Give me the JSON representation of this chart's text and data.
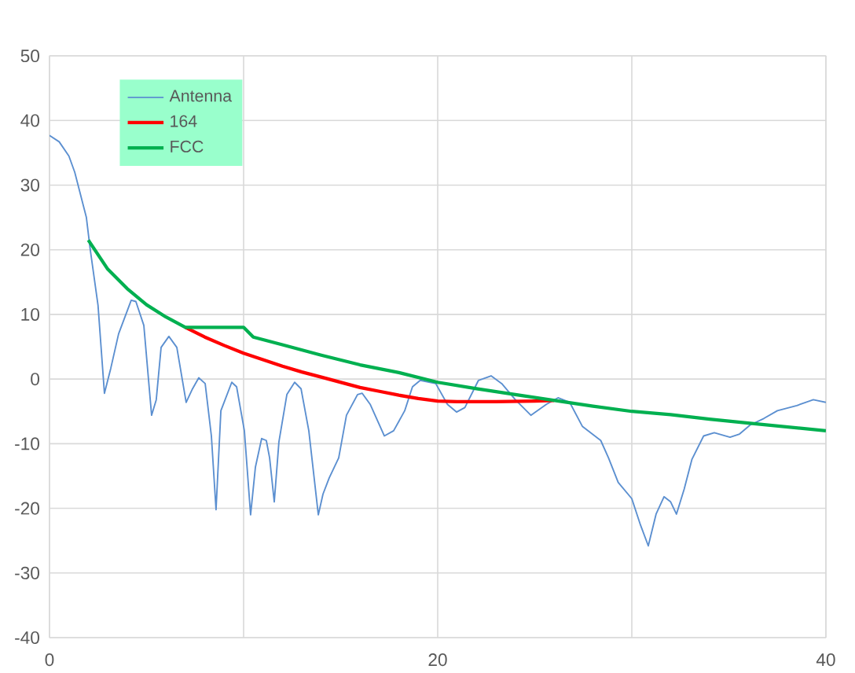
{
  "chart_data": {
    "type": "line",
    "xlim": [
      0,
      40
    ],
    "ylim": [
      -40,
      50
    ],
    "xticks": [
      0,
      {
        "value": 10,
        "label": null
      },
      20,
      {
        "value": 30,
        "label": null
      },
      40
    ],
    "yticks": [
      -40,
      -30,
      -20,
      -10,
      0,
      10,
      20,
      30,
      40,
      50
    ],
    "grid": true,
    "legend": "top left",
    "marker": "none",
    "line_style": "solid",
    "series": [
      {
        "name": "Antenna",
        "color": "#5b8fd0",
        "x": [
          0,
          0.5,
          1,
          1.3,
          1.6,
          1.9,
          2.1,
          2.5,
          2.83,
          3.16,
          3.56,
          4.21,
          4.45,
          4.86,
          5.26,
          5.5,
          5.75,
          6.15,
          6.56,
          7.04,
          7.37,
          7.69,
          8.02,
          8.34,
          8.58,
          8.83,
          9.39,
          9.64,
          10.04,
          10.36,
          10.61,
          10.93,
          11.17,
          11.34,
          11.58,
          11.82,
          12.23,
          12.63,
          12.96,
          13.36,
          13.85,
          14.09,
          14.41,
          14.9,
          15.3,
          15.87,
          16.11,
          16.52,
          17.25,
          17.73,
          18.3,
          18.7,
          19.1,
          19.9,
          20.5,
          20.97,
          21.4,
          22.1,
          22.75,
          23.3,
          24,
          24.8,
          25.6,
          26.2,
          26.8,
          27.45,
          28.4,
          28.8,
          29.3,
          30,
          30.45,
          30.85,
          31.25,
          31.66,
          32,
          32.3,
          32.7,
          33.1,
          33.7,
          34.25,
          35.06,
          35.55,
          36.1,
          36.8,
          37.5,
          38.5,
          39.35,
          40
        ],
        "values": [
          37.7,
          36.7,
          34.5,
          32,
          28.5,
          25,
          20,
          11.4,
          -2.2,
          1.7,
          7,
          12.2,
          12,
          8.3,
          -5.6,
          -3.2,
          4.9,
          6.6,
          4.9,
          -3.6,
          -1.5,
          0.2,
          -0.7,
          -8.8,
          -20.2,
          -4.9,
          -0.5,
          -1.2,
          -8,
          -21,
          -13.6,
          -9.2,
          -9.5,
          -12.2,
          -19,
          -9.7,
          -2.4,
          -0.5,
          -1.5,
          -8,
          -21,
          -17.8,
          -15.3,
          -12.2,
          -5.6,
          -2.4,
          -2.2,
          -3.9,
          -8.8,
          -8,
          -4.9,
          -1.2,
          -0.2,
          -0.7,
          -3.9,
          -5.1,
          -4.4,
          -0.2,
          0.5,
          -0.7,
          -3.2,
          -5.6,
          -3.9,
          -2.9,
          -3.6,
          -7.3,
          -9.5,
          -12.2,
          -16,
          -18.5,
          -22.6,
          -25.8,
          -20.9,
          -18.2,
          -19,
          -20.9,
          -17,
          -12.4,
          -8.8,
          -8.3,
          -9,
          -8.5,
          -7.1,
          -6.1,
          -4.9,
          -4.1,
          -3.2,
          -3.6
        ]
      },
      {
        "name": "164",
        "color": "#ff0000",
        "x": [
          7,
          8,
          9,
          10,
          11,
          12,
          13,
          14,
          15,
          16,
          17,
          18,
          19,
          20,
          21,
          23,
          25,
          26
        ],
        "values": [
          8,
          6.5,
          5.2,
          4,
          3,
          2,
          1.1,
          0.3,
          -0.5,
          -1.3,
          -1.9,
          -2.5,
          -3,
          -3.4,
          -3.5,
          -3.5,
          -3.4,
          -3.3
        ]
      },
      {
        "name": "FCC",
        "color": "#00b050",
        "x": [
          2,
          3,
          4,
          5,
          6,
          7,
          10,
          10.5,
          12,
          14,
          16,
          18,
          20,
          22,
          24,
          26,
          28,
          30,
          32,
          34,
          36,
          38,
          40
        ],
        "values": [
          21.5,
          17,
          14,
          11.5,
          9.6,
          8,
          8,
          6.5,
          5.3,
          3.7,
          2.2,
          1,
          -0.5,
          -1.5,
          -2.4,
          -3.3,
          -4.2,
          -5,
          -5.5,
          -6.2,
          -6.8,
          -7.4,
          -8
        ]
      }
    ]
  }
}
